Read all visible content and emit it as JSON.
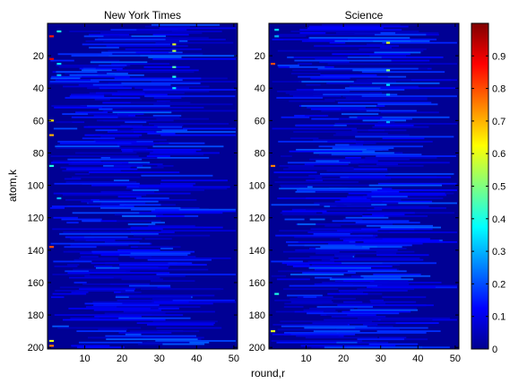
{
  "chart_data": [
    {
      "type": "heatmap",
      "title": "New York Times",
      "xlabel": "round,r",
      "ylabel": "atom,k",
      "xlim": [
        0,
        51
      ],
      "ylim": [
        0,
        201
      ],
      "xticks": [
        10,
        20,
        30,
        40,
        50
      ],
      "yticks": [
        20,
        40,
        60,
        80,
        100,
        120,
        140,
        160,
        180,
        200
      ],
      "y_reversed": true,
      "grid": false,
      "colormap": "jet",
      "background_value": 0.02,
      "highlights": [
        {
          "round": 1,
          "atom": 8,
          "value": 0.85
        },
        {
          "round": 1,
          "atom": 22,
          "value": 0.9
        },
        {
          "round": 1,
          "atom": 60,
          "value": 0.65
        },
        {
          "round": 1,
          "atom": 69,
          "value": 0.7
        },
        {
          "round": 1,
          "atom": 88,
          "value": 0.4
        },
        {
          "round": 1,
          "atom": 138,
          "value": 0.8
        },
        {
          "round": 1,
          "atom": 196,
          "value": 0.6
        },
        {
          "round": 1,
          "atom": 199,
          "value": 0.75
        },
        {
          "round": 3,
          "atom": 5,
          "value": 0.4
        },
        {
          "round": 3,
          "atom": 25,
          "value": 0.35
        },
        {
          "round": 3,
          "atom": 32,
          "value": 0.3
        },
        {
          "round": 3,
          "atom": 108,
          "value": 0.3
        },
        {
          "round": 34,
          "atom": 13,
          "value": 0.6
        },
        {
          "round": 34,
          "atom": 17,
          "value": 0.55
        },
        {
          "round": 34,
          "atom": 27,
          "value": 0.45
        },
        {
          "round": 34,
          "atom": 33,
          "value": 0.4
        },
        {
          "round": 34,
          "atom": 40,
          "value": 0.35
        }
      ]
    },
    {
      "type": "heatmap",
      "title": "Science",
      "xlim": [
        0,
        51
      ],
      "ylim": [
        0,
        201
      ],
      "xticks": [
        10,
        20,
        30,
        40,
        50
      ],
      "yticks": [
        20,
        40,
        60,
        80,
        100,
        120,
        140,
        160,
        180,
        200
      ],
      "y_reversed": true,
      "grid": false,
      "colormap": "jet",
      "background_value": 0.02,
      "highlights": [
        {
          "round": 1,
          "atom": 25,
          "value": 0.8
        },
        {
          "round": 1,
          "atom": 88,
          "value": 0.75
        },
        {
          "round": 1,
          "atom": 190,
          "value": 0.6
        },
        {
          "round": 2,
          "atom": 4,
          "value": 0.35
        },
        {
          "round": 2,
          "atom": 8,
          "value": 0.3
        },
        {
          "round": 2,
          "atom": 167,
          "value": 0.4
        },
        {
          "round": 32,
          "atom": 12,
          "value": 0.6
        },
        {
          "round": 32,
          "atom": 29,
          "value": 0.5
        },
        {
          "round": 32,
          "atom": 38,
          "value": 0.35
        },
        {
          "round": 32,
          "atom": 44,
          "value": 0.3
        },
        {
          "round": 32,
          "atom": 61,
          "value": 0.3
        }
      ]
    }
  ],
  "colorbar": {
    "range": [
      0,
      1
    ],
    "ticks": [
      "0",
      "0.1",
      "0.2",
      "0.3",
      "0.4",
      "0.5",
      "0.6",
      "0.7",
      "0.8",
      "0.9"
    ]
  }
}
